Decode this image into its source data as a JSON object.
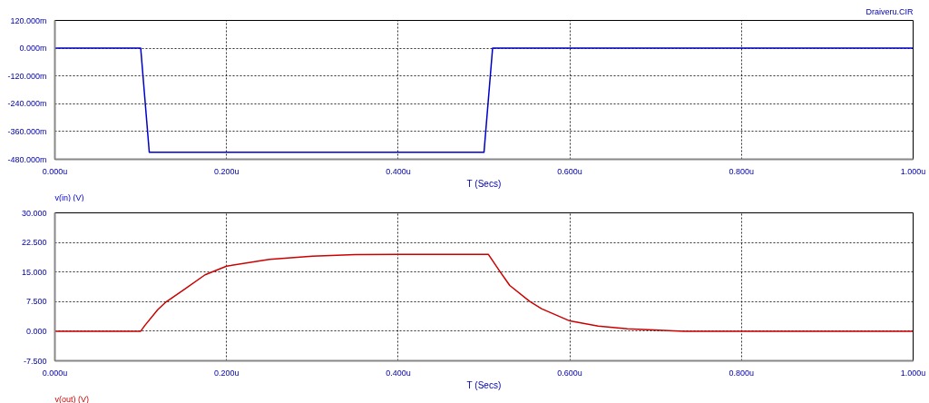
{
  "chart_data": [
    {
      "type": "line",
      "title": "Draiveru.CIR",
      "xlabel": "T (Secs)",
      "grid": true,
      "legend": "bottom left",
      "marker": "none",
      "line_style": "solid",
      "xlim": [
        0,
        1
      ],
      "xticks": [
        {
          "value": 0,
          "label": "0.000u"
        },
        {
          "value": 0.2,
          "label": "0.200u"
        },
        {
          "value": 0.4,
          "label": "0.400u"
        },
        {
          "value": 0.6,
          "label": "0.600u"
        },
        {
          "value": 0.8,
          "label": "0.800u"
        },
        {
          "value": 1,
          "label": "1.000u"
        }
      ],
      "ylim": [
        -480,
        120
      ],
      "yticks": [
        {
          "value": 120,
          "label": "120.000m"
        },
        {
          "value": 0,
          "label": "0.000m"
        },
        {
          "value": -120,
          "label": "-120.000m"
        },
        {
          "value": -240,
          "label": "-240.000m"
        },
        {
          "value": -360,
          "label": "-360.000m"
        },
        {
          "value": -480,
          "label": "-480.000m"
        }
      ],
      "x": [
        0,
        0.1,
        0.11,
        0.5,
        0.51,
        1
      ],
      "series": [
        {
          "name": "v(in) (V)",
          "color": "#0000cc",
          "values": [
            0,
            0,
            -450,
            -450,
            0,
            0
          ]
        }
      ]
    },
    {
      "type": "line",
      "xlabel": "T (Secs)",
      "grid": true,
      "legend": "bottom left",
      "marker": "none",
      "line_style": "solid",
      "xlim": [
        0,
        1
      ],
      "xticks": [
        {
          "value": 0,
          "label": "0.000u"
        },
        {
          "value": 0.2,
          "label": "0.200u"
        },
        {
          "value": 0.4,
          "label": "0.400u"
        },
        {
          "value": 0.6,
          "label": "0.600u"
        },
        {
          "value": 0.8,
          "label": "0.800u"
        },
        {
          "value": 1,
          "label": "1.000u"
        }
      ],
      "ylim": [
        -7.5,
        30
      ],
      "yticks": [
        {
          "value": 30,
          "label": "30.000"
        },
        {
          "value": 22.5,
          "label": "22.500"
        },
        {
          "value": 15,
          "label": "15.000"
        },
        {
          "value": 7.5,
          "label": "7.500"
        },
        {
          "value": 0,
          "label": "0.000"
        },
        {
          "value": -7.5,
          "label": "-7.500"
        }
      ],
      "x": [
        0,
        0.1,
        0.105,
        0.12,
        0.13,
        0.15,
        0.175,
        0.2,
        0.25,
        0.3,
        0.35,
        0.4,
        0.505,
        0.518,
        0.53,
        0.553,
        0.567,
        0.6,
        0.633,
        0.667,
        0.733,
        1
      ],
      "series": [
        {
          "name": "v(out) (V)",
          "color": "#cc0000",
          "values": [
            0,
            0,
            1.5,
            5.5,
            7.5,
            10.5,
            14.3,
            16.5,
            18.2,
            19.0,
            19.4,
            19.5,
            19.5,
            15.3,
            11.6,
            7.6,
            5.7,
            2.6,
            1.3,
            0.6,
            0,
            0
          ]
        }
      ]
    }
  ]
}
